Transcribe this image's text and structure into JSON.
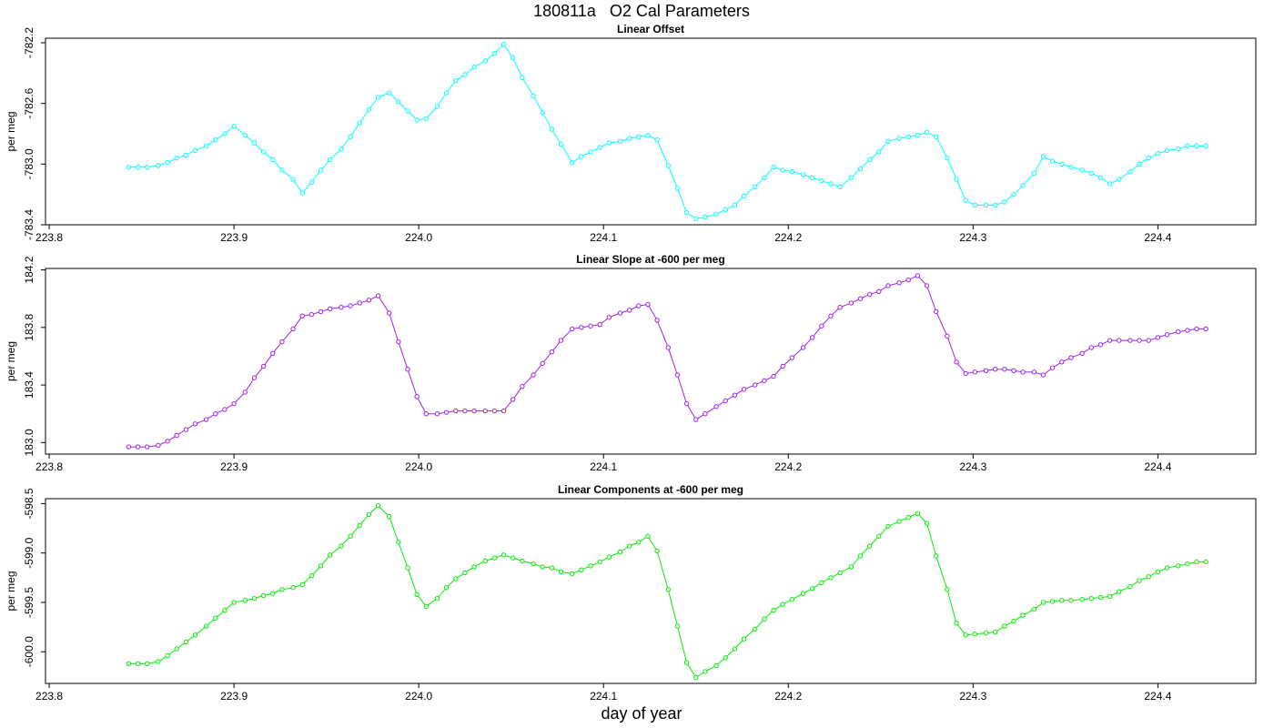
{
  "title": "180811a   O2 Cal Parameters",
  "xlabel": "day of year",
  "chart_data": [
    {
      "type": "line",
      "title": "Linear Offset",
      "ylabel": "per meg",
      "color": "#00ffff",
      "x": [
        223.843,
        223.848,
        223.853,
        223.859,
        223.864,
        223.869,
        223.874,
        223.879,
        223.885,
        223.89,
        223.895,
        223.9,
        223.906,
        223.911,
        223.916,
        223.921,
        223.926,
        223.932,
        223.937,
        223.942,
        223.947,
        223.952,
        223.958,
        223.963,
        223.968,
        223.973,
        223.978,
        223.984,
        223.989,
        223.994,
        223.999,
        224.004,
        224.01,
        224.015,
        224.02,
        224.025,
        224.03,
        224.036,
        224.041,
        224.046,
        224.051,
        224.056,
        224.062,
        224.067,
        224.072,
        224.077,
        224.083,
        224.088,
        224.093,
        224.098,
        224.103,
        224.109,
        224.114,
        224.119,
        224.124,
        224.129,
        224.135,
        224.14,
        224.145,
        224.15,
        224.155,
        224.161,
        224.166,
        224.171,
        224.176,
        224.182,
        224.187,
        224.192,
        224.197,
        224.202,
        224.208,
        224.213,
        224.218,
        224.223,
        224.228,
        224.234,
        224.239,
        224.244,
        224.249,
        224.254,
        224.26,
        224.265,
        224.27,
        224.275,
        224.28,
        224.286,
        224.291,
        224.296,
        224.301,
        224.307,
        224.312,
        224.317,
        224.322,
        224.327,
        224.333,
        224.338,
        224.343,
        224.348,
        224.353,
        224.359,
        224.364,
        224.369,
        224.374,
        224.379,
        224.385,
        224.39,
        224.395,
        224.4,
        224.405,
        224.411,
        224.416,
        224.421,
        224.426
      ],
      "values": [
        -783.02,
        -783.02,
        -783.02,
        -783.01,
        -782.99,
        -782.96,
        -782.94,
        -782.91,
        -782.88,
        -782.84,
        -782.8,
        -782.75,
        -782.81,
        -782.86,
        -782.92,
        -782.97,
        -783.04,
        -783.1,
        -783.19,
        -783.12,
        -783.04,
        -782.97,
        -782.9,
        -782.82,
        -782.73,
        -782.64,
        -782.56,
        -782.53,
        -782.59,
        -782.65,
        -782.71,
        -782.7,
        -782.62,
        -782.53,
        -782.45,
        -782.41,
        -782.36,
        -782.32,
        -782.27,
        -782.21,
        -782.3,
        -782.43,
        -782.55,
        -782.66,
        -782.77,
        -782.87,
        -782.99,
        -782.95,
        -782.92,
        -782.89,
        -782.86,
        -782.85,
        -782.83,
        -782.82,
        -782.81,
        -782.84,
        -783.01,
        -783.16,
        -783.32,
        -783.36,
        -783.35,
        -783.33,
        -783.3,
        -783.27,
        -783.21,
        -783.15,
        -783.09,
        -783.02,
        -783.04,
        -783.05,
        -783.07,
        -783.09,
        -783.11,
        -783.13,
        -783.15,
        -783.09,
        -783.03,
        -782.97,
        -782.92,
        -782.85,
        -782.83,
        -782.82,
        -782.81,
        -782.79,
        -782.82,
        -782.96,
        -783.1,
        -783.24,
        -783.27,
        -783.27,
        -783.27,
        -783.25,
        -783.2,
        -783.14,
        -783.06,
        -782.95,
        -782.98,
        -783.0,
        -783.02,
        -783.04,
        -783.06,
        -783.09,
        -783.13,
        -783.1,
        -783.05,
        -783.0,
        -782.96,
        -782.93,
        -782.91,
        -782.9,
        -782.88,
        -782.88,
        -782.88
      ],
      "xlim": [
        223.798,
        224.453
      ],
      "xticks": [
        223.8,
        223.9,
        {
          "value": 224,
          "label": "224.0"
        },
        224.1,
        224.2,
        224.3,
        224.4
      ],
      "ylim": [
        -783.4,
        -782.17
      ],
      "yticks": [
        -782.2,
        -782.6,
        {
          "value": -783,
          "label": "-783.0"
        },
        -783.4
      ]
    },
    {
      "type": "line",
      "title": "Linear Slope at -600 per meg",
      "ylabel": "per meg",
      "color": "#a020f0",
      "x": [
        223.843,
        223.848,
        223.853,
        223.859,
        223.864,
        223.869,
        223.874,
        223.879,
        223.885,
        223.89,
        223.895,
        223.9,
        223.906,
        223.911,
        223.916,
        223.921,
        223.926,
        223.932,
        223.937,
        223.942,
        223.947,
        223.952,
        223.958,
        223.963,
        223.968,
        223.973,
        223.978,
        223.984,
        223.989,
        223.994,
        223.999,
        224.004,
        224.01,
        224.015,
        224.02,
        224.025,
        224.03,
        224.036,
        224.041,
        224.046,
        224.051,
        224.056,
        224.062,
        224.067,
        224.072,
        224.077,
        224.083,
        224.088,
        224.093,
        224.098,
        224.103,
        224.109,
        224.114,
        224.119,
        224.124,
        224.129,
        224.135,
        224.14,
        224.145,
        224.15,
        224.155,
        224.161,
        224.166,
        224.171,
        224.176,
        224.182,
        224.187,
        224.192,
        224.197,
        224.202,
        224.208,
        224.213,
        224.218,
        224.223,
        224.228,
        224.234,
        224.239,
        224.244,
        224.249,
        224.254,
        224.26,
        224.265,
        224.27,
        224.275,
        224.28,
        224.286,
        224.291,
        224.296,
        224.301,
        224.307,
        224.312,
        224.317,
        224.322,
        224.327,
        224.333,
        224.338,
        224.343,
        224.348,
        224.353,
        224.359,
        224.364,
        224.369,
        224.374,
        224.379,
        224.385,
        224.39,
        224.395,
        224.4,
        224.405,
        224.411,
        224.416,
        224.421,
        224.426
      ],
      "values": [
        182.97,
        182.97,
        182.97,
        182.98,
        183.01,
        183.05,
        183.09,
        183.13,
        183.16,
        183.2,
        183.23,
        183.27,
        183.35,
        183.45,
        183.53,
        183.62,
        183.7,
        183.79,
        183.88,
        183.89,
        183.91,
        183.93,
        183.94,
        183.95,
        183.97,
        183.99,
        184.02,
        183.9,
        183.7,
        183.51,
        183.32,
        183.2,
        183.2,
        183.21,
        183.22,
        183.22,
        183.22,
        183.22,
        183.22,
        183.22,
        183.3,
        183.39,
        183.47,
        183.55,
        183.63,
        183.71,
        183.79,
        183.8,
        183.81,
        183.82,
        183.87,
        183.9,
        183.92,
        183.95,
        183.96,
        183.85,
        183.66,
        183.47,
        183.27,
        183.16,
        183.2,
        183.25,
        183.29,
        183.33,
        183.37,
        183.4,
        183.43,
        183.46,
        183.53,
        183.59,
        183.66,
        183.73,
        183.81,
        183.88,
        183.94,
        183.97,
        184.0,
        184.03,
        184.05,
        184.09,
        184.11,
        184.13,
        184.16,
        184.09,
        183.91,
        183.74,
        183.56,
        183.48,
        183.49,
        183.5,
        183.51,
        183.51,
        183.5,
        183.49,
        183.49,
        183.47,
        183.52,
        183.56,
        183.59,
        183.62,
        183.66,
        183.68,
        183.71,
        183.71,
        183.71,
        183.71,
        183.71,
        183.73,
        183.75,
        183.77,
        183.78,
        183.79,
        183.79
      ],
      "xlim": [
        223.798,
        224.453
      ],
      "xticks": [
        223.8,
        223.9,
        {
          "value": 224,
          "label": "224.0"
        },
        224.1,
        224.2,
        224.3,
        224.4
      ],
      "ylim": [
        182.92,
        184.21
      ],
      "yticks": [
        {
          "value": 183,
          "label": "183.0"
        },
        183.4,
        183.8,
        184.2
      ]
    },
    {
      "type": "line",
      "title": "Linear Components at -600 per meg",
      "ylabel": "per meg",
      "color": "#00ee00",
      "x": [
        223.843,
        223.848,
        223.853,
        223.859,
        223.864,
        223.869,
        223.874,
        223.879,
        223.885,
        223.89,
        223.895,
        223.9,
        223.906,
        223.911,
        223.916,
        223.921,
        223.926,
        223.932,
        223.937,
        223.942,
        223.947,
        223.952,
        223.958,
        223.963,
        223.968,
        223.973,
        223.978,
        223.984,
        223.989,
        223.994,
        223.999,
        224.004,
        224.01,
        224.015,
        224.02,
        224.025,
        224.03,
        224.036,
        224.041,
        224.046,
        224.051,
        224.056,
        224.062,
        224.067,
        224.072,
        224.077,
        224.083,
        224.088,
        224.093,
        224.098,
        224.103,
        224.109,
        224.114,
        224.119,
        224.124,
        224.129,
        224.135,
        224.14,
        224.145,
        224.15,
        224.155,
        224.161,
        224.166,
        224.171,
        224.176,
        224.182,
        224.187,
        224.192,
        224.197,
        224.202,
        224.208,
        224.213,
        224.218,
        224.223,
        224.228,
        224.234,
        224.239,
        224.244,
        224.249,
        224.254,
        224.26,
        224.265,
        224.27,
        224.275,
        224.28,
        224.286,
        224.291,
        224.296,
        224.301,
        224.307,
        224.312,
        224.317,
        224.322,
        224.327,
        224.333,
        224.338,
        224.343,
        224.348,
        224.353,
        224.359,
        224.364,
        224.369,
        224.374,
        224.379,
        224.385,
        224.39,
        224.395,
        224.4,
        224.405,
        224.411,
        224.416,
        224.421,
        224.426
      ],
      "values": [
        -600.12,
        -600.12,
        -600.12,
        -600.1,
        -600.04,
        -599.97,
        -599.9,
        -599.83,
        -599.74,
        -599.66,
        -599.58,
        -599.5,
        -599.48,
        -599.46,
        -599.43,
        -599.41,
        -599.37,
        -599.35,
        -599.32,
        -599.23,
        -599.13,
        -599.02,
        -598.93,
        -598.83,
        -598.72,
        -598.61,
        -598.52,
        -598.63,
        -598.89,
        -599.15,
        -599.42,
        -599.54,
        -599.46,
        -599.35,
        -599.26,
        -599.2,
        -599.14,
        -599.08,
        -599.05,
        -599.02,
        -599.05,
        -599.08,
        -599.11,
        -599.14,
        -599.15,
        -599.19,
        -599.21,
        -599.17,
        -599.13,
        -599.09,
        -599.04,
        -598.99,
        -598.93,
        -598.89,
        -598.83,
        -598.98,
        -599.37,
        -599.74,
        -600.11,
        -600.26,
        -600.2,
        -600.14,
        -600.06,
        -599.97,
        -599.87,
        -599.77,
        -599.67,
        -599.58,
        -599.52,
        -599.47,
        -599.41,
        -599.36,
        -599.3,
        -599.25,
        -599.2,
        -599.14,
        -599.03,
        -598.93,
        -598.83,
        -598.73,
        -598.68,
        -598.64,
        -598.6,
        -598.7,
        -599.03,
        -599.37,
        -599.71,
        -599.83,
        -599.82,
        -599.81,
        -599.8,
        -599.74,
        -599.69,
        -599.63,
        -599.57,
        -599.5,
        -599.49,
        -599.48,
        -599.48,
        -599.47,
        -599.46,
        -599.45,
        -599.44,
        -599.39,
        -599.34,
        -599.28,
        -599.24,
        -599.19,
        -599.15,
        -599.13,
        -599.11,
        -599.09,
        -599.09
      ],
      "xlim": [
        223.798,
        224.453
      ],
      "xticks": [
        223.8,
        223.9,
        {
          "value": 224,
          "label": "224.0"
        },
        224.1,
        224.2,
        224.3,
        224.4
      ],
      "ylim": [
        -600.32,
        -598.45
      ],
      "yticks": [
        -598.5,
        {
          "value": -599,
          "label": "-599.0"
        },
        -599.5,
        {
          "value": -600,
          "label": "-600.0"
        }
      ]
    }
  ]
}
